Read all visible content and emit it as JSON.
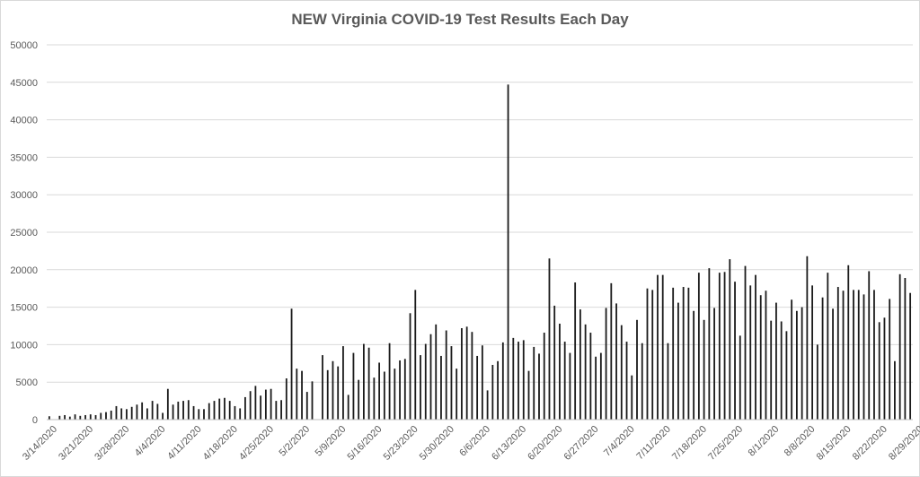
{
  "chart_data": {
    "type": "bar",
    "title": "NEW Virginia COVID-19 Test Results Each Day",
    "xlabel": "",
    "ylabel": "",
    "ylim": [
      0,
      50000
    ],
    "grid": true,
    "legend": "none",
    "y_ticks": [
      0,
      5000,
      10000,
      15000,
      20000,
      25000,
      30000,
      35000,
      40000,
      45000,
      50000
    ],
    "x_tick_labels": [
      "3/14/2020",
      "3/21/2020",
      "3/28/2020",
      "4/4/2020",
      "4/11/2020",
      "4/18/2020",
      "4/25/2020",
      "5/2/2020",
      "5/9/2020",
      "5/16/2020",
      "5/23/2020",
      "5/30/2020",
      "6/6/2020",
      "6/13/2020",
      "6/20/2020",
      "6/27/2020",
      "7/4/2020",
      "7/11/2020",
      "7/18/2020",
      "7/25/2020",
      "8/1/2020",
      "8/8/2020",
      "8/15/2020",
      "8/22/2020",
      "8/29/2020"
    ],
    "start_date": "3/14/2020",
    "bar_color": "#1a1a1a",
    "values": [
      450,
      0,
      500,
      600,
      400,
      700,
      500,
      600,
      700,
      600,
      900,
      1000,
      1200,
      1800,
      1500,
      1400,
      1700,
      2000,
      2300,
      1500,
      2500,
      2100,
      900,
      4100,
      2000,
      2400,
      2500,
      2600,
      1800,
      1400,
      1400,
      2200,
      2500,
      2800,
      2900,
      2500,
      1800,
      1500,
      3000,
      3800,
      4500,
      3200,
      4000,
      4100,
      2500,
      2600,
      5500,
      14800,
      6800,
      6500,
      3700,
      5100,
      0,
      8600,
      6600,
      7800,
      7100,
      9800,
      3300,
      8900,
      5300,
      10100,
      9600,
      5600,
      7600,
      6400,
      10200,
      6800,
      7900,
      8100,
      14200,
      17300,
      8600,
      10100,
      11400,
      12700,
      8500,
      11900,
      9800,
      6800,
      12200,
      12400,
      11700,
      8500,
      9900,
      3900,
      7300,
      7800,
      10300,
      44700,
      10900,
      10400,
      10600,
      6500,
      9700,
      8800,
      11600,
      21500,
      15200,
      12800,
      10400,
      8900,
      18300,
      14700,
      12700,
      11600,
      8400,
      8900,
      14900,
      18200,
      15500,
      12600,
      10400,
      5900,
      13300,
      10200,
      17500,
      17300,
      19300,
      19300,
      10200,
      17600,
      15600,
      17700,
      17600,
      14500,
      19600,
      13300,
      20200,
      14900,
      19600,
      19700,
      21400,
      18400,
      11200,
      20500,
      17900,
      19300,
      16600,
      17200,
      13200,
      15600,
      13100,
      11800,
      16000,
      14500,
      15000,
      21800,
      17900,
      10000,
      16300,
      19600,
      14800,
      17700,
      17200,
      20600,
      17300,
      17300,
      16700,
      19800,
      17300,
      13000,
      13600,
      16100,
      7800,
      19400,
      18900,
      16900
    ]
  }
}
